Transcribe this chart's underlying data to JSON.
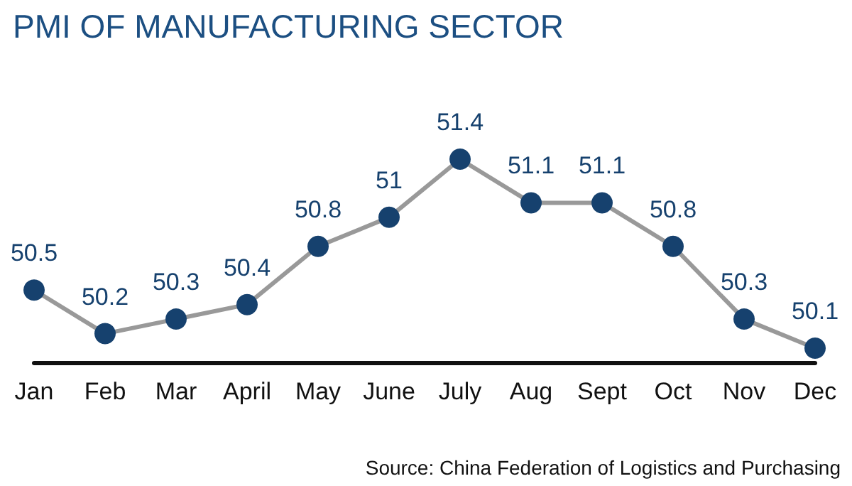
{
  "chart_data": {
    "type": "line",
    "title": "PMI OF MANUFACTURING SECTOR",
    "categories": [
      "Jan",
      "Feb",
      "Mar",
      "April",
      "May",
      "June",
      "July",
      "Aug",
      "Sept",
      "Oct",
      "Nov",
      "Dec"
    ],
    "series": [
      {
        "color": "#999999",
        "values": [
          50.5,
          50.2,
          50.3,
          50.4,
          50.8,
          51,
          51.4,
          51.1,
          51.1,
          50.8,
          50.3,
          50.1
        ]
      }
    ],
    "tick_labels": "x",
    "data_labels": true,
    "marker": "circle",
    "line_style": "solid",
    "grid": false,
    "annotations": [
      "Source: China Federation of Logistics and Purchasing"
    ]
  }
}
